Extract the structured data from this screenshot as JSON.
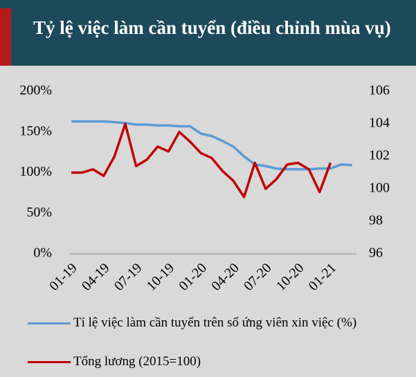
{
  "chart_data": {
    "type": "line",
    "title": "Tỷ lệ việc làm cần tuyển (điều chỉnh mùa vụ)",
    "categories": [
      "01-19",
      null,
      null,
      "04-19",
      null,
      null,
      "07-19",
      null,
      null,
      "10-19",
      null,
      null,
      "01-20",
      null,
      null,
      "04-20",
      null,
      null,
      "07-20",
      null,
      null,
      "10-20",
      null,
      null,
      "01-21",
      null,
      null
    ],
    "series": [
      {
        "name": "Tỉ lệ việc làm cần tuyển trên số ứng viên xin việc (%)",
        "color": "#5b9bd5",
        "values": [
          163,
          163,
          163,
          163,
          162,
          161,
          159,
          159,
          158,
          158,
          157,
          157,
          148,
          145,
          139,
          132,
          120,
          110,
          108,
          105,
          104,
          104,
          104,
          105,
          105,
          110,
          109
        ]
      },
      {
        "name": "Tổng lương (2015=100)",
        "color": "#c00000",
        "axis": "y2",
        "values": [
          101,
          101,
          101.2,
          100.8,
          102,
          104,
          101.4,
          101.8,
          102.6,
          102.3,
          103.5,
          102.9,
          102.2,
          101.9,
          101.1,
          100.5,
          99.5,
          101.6,
          100,
          100.6,
          101.5,
          101.6,
          101.2,
          99.8,
          101.6,
          null,
          null
        ]
      }
    ],
    "ylim": [
      0,
      200
    ],
    "yticks": [
      {
        "value": 0,
        "label": "0%"
      },
      {
        "value": 50,
        "label": "50%"
      },
      {
        "value": 100,
        "label": "100%"
      },
      {
        "value": 150,
        "label": "150%"
      },
      {
        "value": 200,
        "label": "200%"
      }
    ],
    "y2lim": [
      96,
      106
    ],
    "y2ticks": [
      96,
      98,
      100,
      102,
      104,
      106
    ]
  }
}
